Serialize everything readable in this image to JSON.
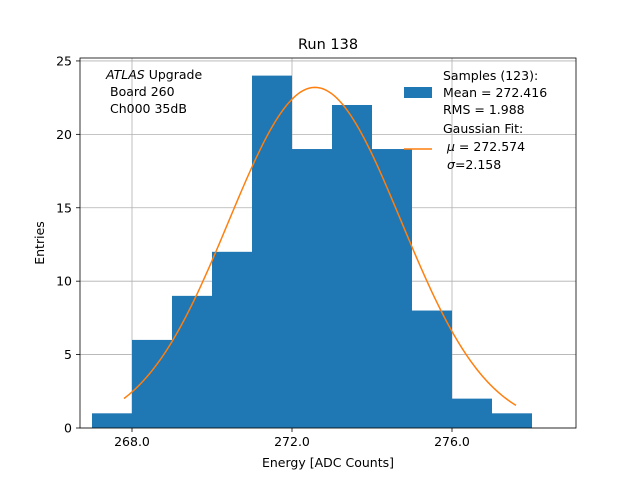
{
  "chart_data": {
    "type": "bar",
    "title": "Run 138",
    "xlabel": "Energy [ADC Counts]",
    "ylabel": "Entries",
    "xlim": [
      266.7,
      279.1
    ],
    "ylim": [
      0,
      25.2
    ],
    "xticks": [
      268.0,
      272.0,
      276.0
    ],
    "xtick_labels": [
      "268.0",
      "272.0",
      "276.0"
    ],
    "yticks": [
      0,
      5,
      10,
      15,
      20,
      25
    ],
    "ytick_labels": [
      "0",
      "5",
      "10",
      "15",
      "20",
      "25"
    ],
    "grid": true,
    "bins": [
      {
        "x0": 267.0,
        "x1": 268.0,
        "value": 1
      },
      {
        "x0": 268.0,
        "x1": 269.0,
        "value": 6
      },
      {
        "x0": 269.0,
        "x1": 270.0,
        "value": 9
      },
      {
        "x0": 270.0,
        "x1": 271.0,
        "value": 12
      },
      {
        "x0": 271.0,
        "x1": 272.0,
        "value": 24
      },
      {
        "x0": 272.0,
        "x1": 273.0,
        "value": 19
      },
      {
        "x0": 273.0,
        "x1": 274.0,
        "value": 22
      },
      {
        "x0": 274.0,
        "x1": 275.0,
        "value": 19
      },
      {
        "x0": 275.0,
        "x1": 276.0,
        "value": 8
      },
      {
        "x0": 276.0,
        "x1": 277.0,
        "value": 2
      },
      {
        "x0": 277.0,
        "x1": 278.0,
        "value": 1
      }
    ],
    "fit": {
      "type": "gaussian",
      "mu": 272.574,
      "sigma": 2.158,
      "peak": 23.2,
      "x_range": [
        267.8,
        277.6
      ]
    },
    "annotation": {
      "line1_italic": "ATLAS",
      "line1_rest": " Upgrade",
      "line2": "Board 260",
      "line3": "Ch000 35dB"
    },
    "legend": {
      "position": "top-right",
      "hist_lines": [
        "Samples (123):",
        "Mean = 272.416",
        "RMS = 1.988"
      ],
      "fit_line1": "Gaussian Fit:",
      "fit_mu_symbol": "μ",
      "fit_mu_value": " = 272.574",
      "fit_sigma_symbol": "σ",
      "fit_sigma_value": "=2.158"
    },
    "colors": {
      "bars": "#1f77b4",
      "fit": "#ff7f0e"
    }
  }
}
